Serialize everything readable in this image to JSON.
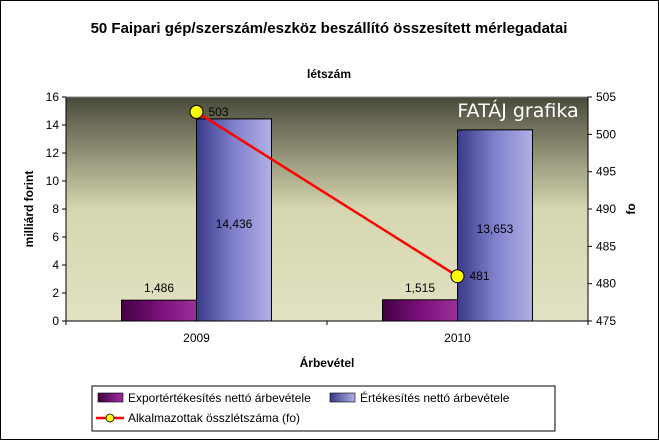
{
  "chart_data": {
    "type": "bar",
    "title": "50 Faipari gép/szerszám/eszköz beszállító összesített mérlegadatai",
    "subtitle": "létszám",
    "watermark": "FATÁJ grafika",
    "xlabel": "Árbevétel",
    "ylabel": "milliárd forint",
    "y2label": "fo",
    "categories": [
      "2009",
      "2010"
    ],
    "ylim": [
      0,
      16
    ],
    "y_ticks": [
      0,
      2,
      4,
      6,
      8,
      10,
      12,
      14,
      16
    ],
    "y2lim": [
      475,
      505
    ],
    "y2_ticks": [
      475,
      480,
      485,
      490,
      495,
      500,
      505
    ],
    "grid": false,
    "legend_position": "bottom",
    "series": [
      {
        "name": "Exportértékesítés nettó árbevétele",
        "type": "bar",
        "axis": "left",
        "color": "#660066",
        "values": [
          1.486,
          1.515
        ],
        "labels": [
          "1,486",
          "1,515"
        ]
      },
      {
        "name": "Értékesítés nettó árbevétele",
        "type": "bar",
        "axis": "left",
        "color": "#7070c0",
        "values": [
          14.436,
          13.653
        ],
        "labels": [
          "14,436",
          "13,653"
        ]
      },
      {
        "name": "Alkalmazottak összlétszáma (fo)",
        "type": "line",
        "axis": "right",
        "color": "#ff0000",
        "marker_color": "#ffff00",
        "values": [
          503,
          481
        ],
        "labels": [
          "503",
          "481"
        ]
      }
    ]
  }
}
